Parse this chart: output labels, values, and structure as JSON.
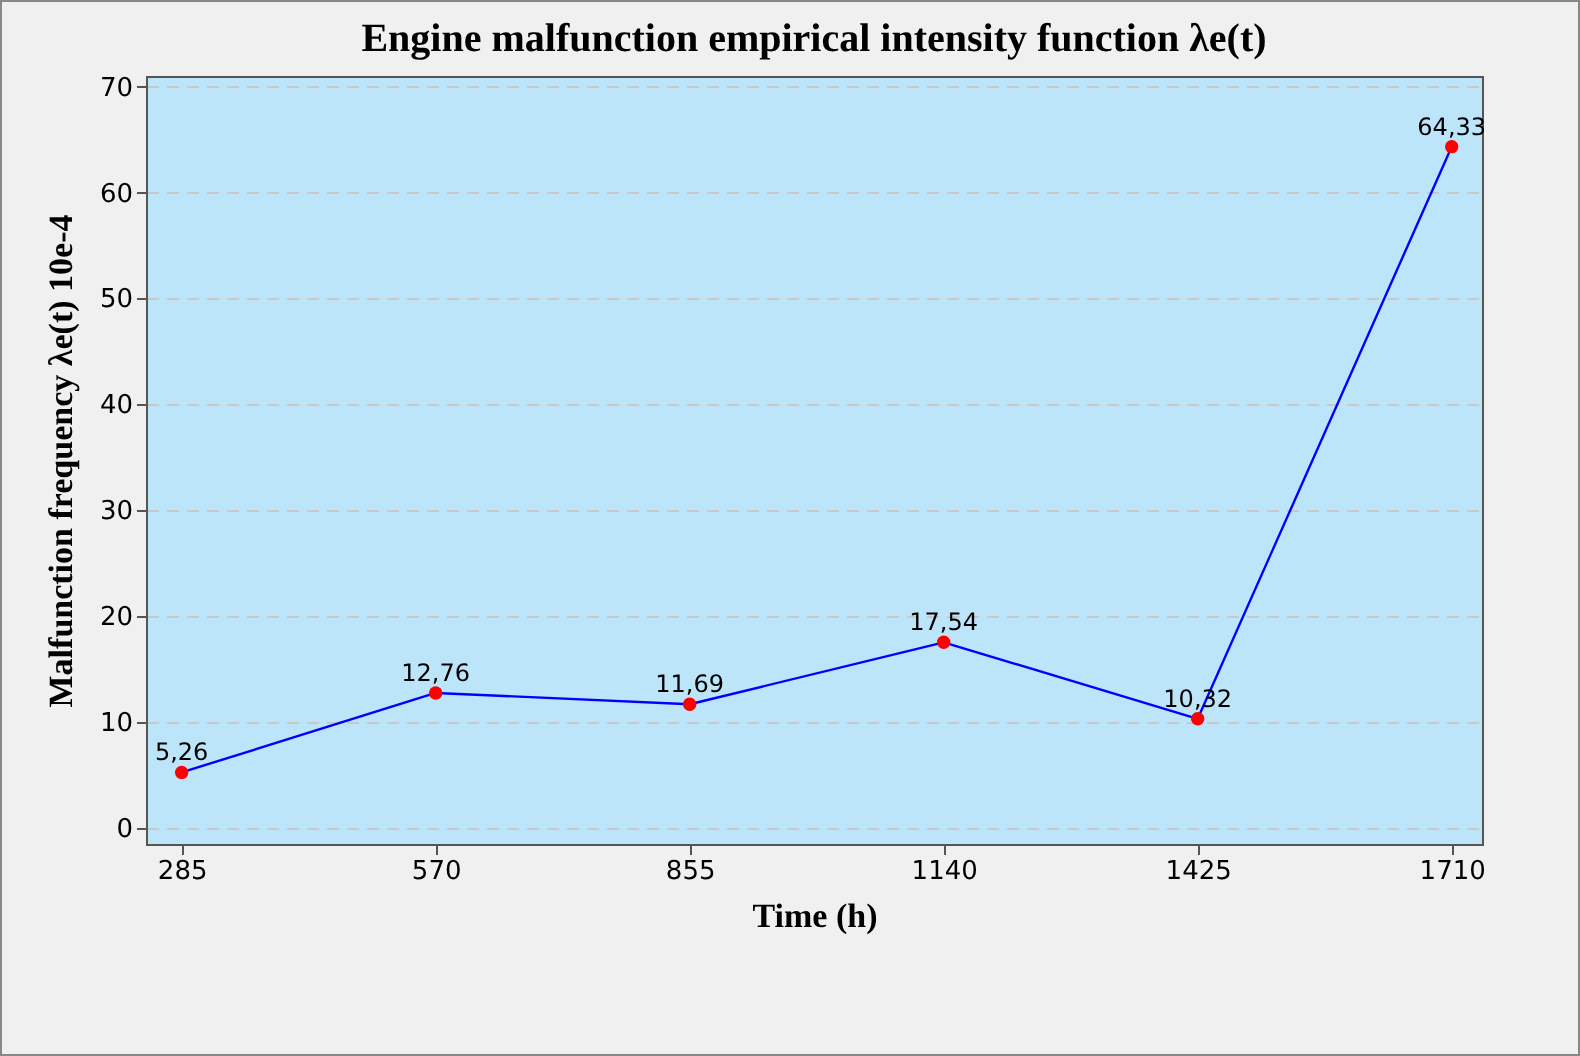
{
  "chart_data": {
    "type": "line",
    "title": "Engine malfunction empirical intensity function λe(t)",
    "xlabel": "Time (h)",
    "ylabel": "Malfunction frequency λe(t) 10e-4",
    "x": [
      285,
      570,
      855,
      1140,
      1425,
      1710
    ],
    "series": [
      {
        "color": "#0000ff",
        "colors": [
          "#ff0000",
          "#ff0000",
          "#ff0000",
          "#ff0000",
          "#ff0000",
          "#ff0000"
        ],
        "values": [
          5.26,
          12.76,
          11.69,
          17.54,
          10.32,
          64.33
        ],
        "value_labels": [
          "5,26",
          "12,76",
          "11,69",
          "17,54",
          "10,32",
          "64,33"
        ]
      }
    ],
    "xlim": [
      245,
      1744
    ],
    "ylim": [
      -1.5,
      71
    ],
    "xticks": [
      285,
      570,
      855,
      1140,
      1425,
      1710
    ],
    "yticks": [
      0,
      10,
      20,
      30,
      40,
      50,
      60,
      70
    ],
    "grid": "y",
    "marker": "circle",
    "line_style": "solid"
  }
}
